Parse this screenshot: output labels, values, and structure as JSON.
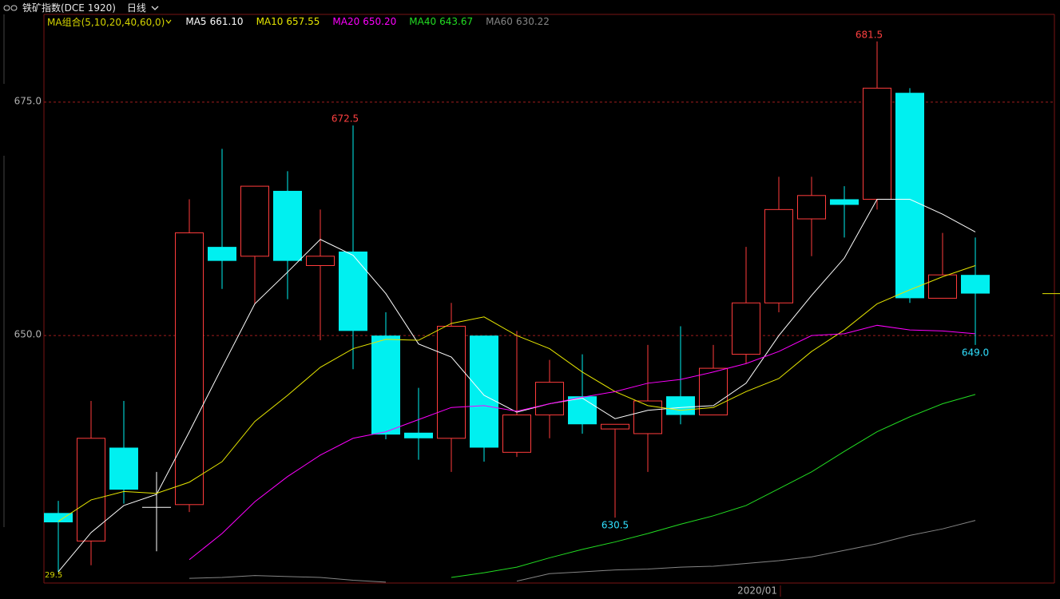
{
  "header": {
    "instrument": "铁矿指数(DCE 1920)",
    "period": "日线"
  },
  "chart_data": {
    "type": "candlestick",
    "legend_title": "MA组合(5,10,20,40,60,0)",
    "categories": [
      null,
      null,
      null,
      null,
      null,
      null,
      null,
      null,
      null,
      null,
      null,
      null,
      null,
      null,
      null,
      null,
      null,
      null,
      null,
      null,
      null,
      null,
      "2020/01",
      null,
      null,
      null,
      null,
      null,
      null
    ],
    "open": [
      631.0,
      628.0,
      638.0,
      631.6,
      631.9,
      659.5,
      658.5,
      665.5,
      657.5,
      659.0,
      650.0,
      639.6,
      639.0,
      650.0,
      637.5,
      641.5,
      643.5,
      640.0,
      639.5,
      643.5,
      641.5,
      648.0,
      653.5,
      662.5,
      664.6,
      664.6,
      676.0,
      654.0,
      656.5
    ],
    "high": [
      632.3,
      643.0,
      643.0,
      635.4,
      664.6,
      670.0,
      666.0,
      667.6,
      663.5,
      672.5,
      652.5,
      644.4,
      653.5,
      650.0,
      650.5,
      647.4,
      648.0,
      640.5,
      649.0,
      651.0,
      649.0,
      659.5,
      667.0,
      667.0,
      666.0,
      681.5,
      676.5,
      661.0,
      660.5
    ],
    "low": [
      624.7,
      625.4,
      632.0,
      626.9,
      631.1,
      655.0,
      653.4,
      653.9,
      649.5,
      646.4,
      638.9,
      636.7,
      635.4,
      636.5,
      637.0,
      639.0,
      639.5,
      630.5,
      635.4,
      640.5,
      641.5,
      647.0,
      652.5,
      658.5,
      660.5,
      663.5,
      653.5,
      654.0,
      649.0
    ],
    "close": [
      630.0,
      639.0,
      633.5,
      631.6,
      661.0,
      658.0,
      666.0,
      658.0,
      658.5,
      650.5,
      639.4,
      639.0,
      651.0,
      638.0,
      641.5,
      645.0,
      640.5,
      640.5,
      643.0,
      641.5,
      646.5,
      653.5,
      663.5,
      665.0,
      664.0,
      676.5,
      654.0,
      656.5,
      654.5
    ],
    "high_labels": [
      null,
      null,
      null,
      null,
      null,
      null,
      null,
      null,
      null,
      "672.5",
      null,
      null,
      null,
      null,
      null,
      null,
      null,
      null,
      null,
      null,
      null,
      null,
      null,
      null,
      null,
      "681.5",
      null,
      null,
      null
    ],
    "low_labels": [
      null,
      null,
      null,
      null,
      null,
      null,
      null,
      null,
      null,
      null,
      null,
      null,
      null,
      null,
      null,
      null,
      null,
      "630.5",
      null,
      null,
      null,
      null,
      null,
      null,
      null,
      null,
      null,
      null,
      "649.0"
    ],
    "up_color": "#ff3c3c",
    "down_color": "#00f0f0",
    "flat_color": "#ffffff",
    "ma_series": [
      {
        "name": "MA5",
        "color": "#ffffff",
        "legend_value": {
          "value": 661.1,
          "label": "661.10"
        },
        "values": [
          624.7,
          628.9,
          631.8,
          633.0,
          639.7,
          646.6,
          653.4,
          656.8,
          660.3,
          658.6,
          654.5,
          649.1,
          647.7,
          643.6,
          641.8,
          642.7,
          643.3,
          641.1,
          642.0,
          642.3,
          642.5,
          644.9,
          650.0,
          654.3,
          658.3,
          664.6,
          664.6,
          663.0,
          661.1
        ]
      },
      {
        "name": "MA10",
        "color": "#e6e600",
        "legend_value": {
          "value": 657.55,
          "label": "657.55"
        },
        "values": [
          630.1,
          632.4,
          633.3,
          633.1,
          634.3,
          636.5,
          640.8,
          643.6,
          646.6,
          648.6,
          649.6,
          649.5,
          651.3,
          652.0,
          650.0,
          648.6,
          646.1,
          644.0,
          642.5,
          642.0,
          642.3,
          644.0,
          645.4,
          648.3,
          650.6,
          653.4,
          654.9,
          656.3,
          657.5
        ]
      },
      {
        "name": "MA20",
        "color": "#ff00ff",
        "legend_value": {
          "value": 650.2,
          "label": "650.20"
        },
        "values": [
          null,
          null,
          null,
          null,
          626.0,
          628.8,
          632.2,
          634.9,
          637.2,
          639.0,
          639.7,
          641.0,
          642.3,
          642.5,
          641.9,
          642.7,
          643.4,
          644.0,
          644.9,
          645.3,
          646.1,
          647.0,
          648.3,
          650.0,
          650.2,
          651.1,
          650.6,
          650.5,
          650.2
        ]
      },
      {
        "name": "MA40",
        "color": "#22dd22",
        "legend_value": {
          "value": 643.67,
          "label": "643.67"
        },
        "values": [
          null,
          null,
          null,
          null,
          null,
          null,
          null,
          null,
          null,
          null,
          null,
          null,
          624.1,
          624.6,
          625.2,
          626.2,
          627.1,
          627.9,
          628.8,
          629.8,
          630.7,
          631.8,
          633.6,
          635.4,
          637.6,
          639.7,
          641.3,
          642.7,
          643.7
        ]
      },
      {
        "name": "MA60",
        "color": "#858585",
        "legend_value": {
          "value": 630.22,
          "label": "630.22"
        },
        "values": [
          null,
          null,
          null,
          null,
          624.0,
          624.1,
          624.3,
          624.2,
          624.1,
          623.8,
          623.6,
          null,
          null,
          null,
          623.7,
          624.5,
          624.7,
          624.9,
          625.0,
          625.2,
          625.3,
          625.6,
          625.9,
          626.3,
          627.0,
          627.7,
          628.6,
          629.3,
          630.2
        ]
      }
    ],
    "ylim": [
      623.5,
      684.4
    ],
    "yticks": [
      {
        "value": 650,
        "label": "650.0"
      },
      {
        "value": 675,
        "label": "675.0"
      }
    ],
    "grid": true,
    "corner_label": "29.5"
  }
}
